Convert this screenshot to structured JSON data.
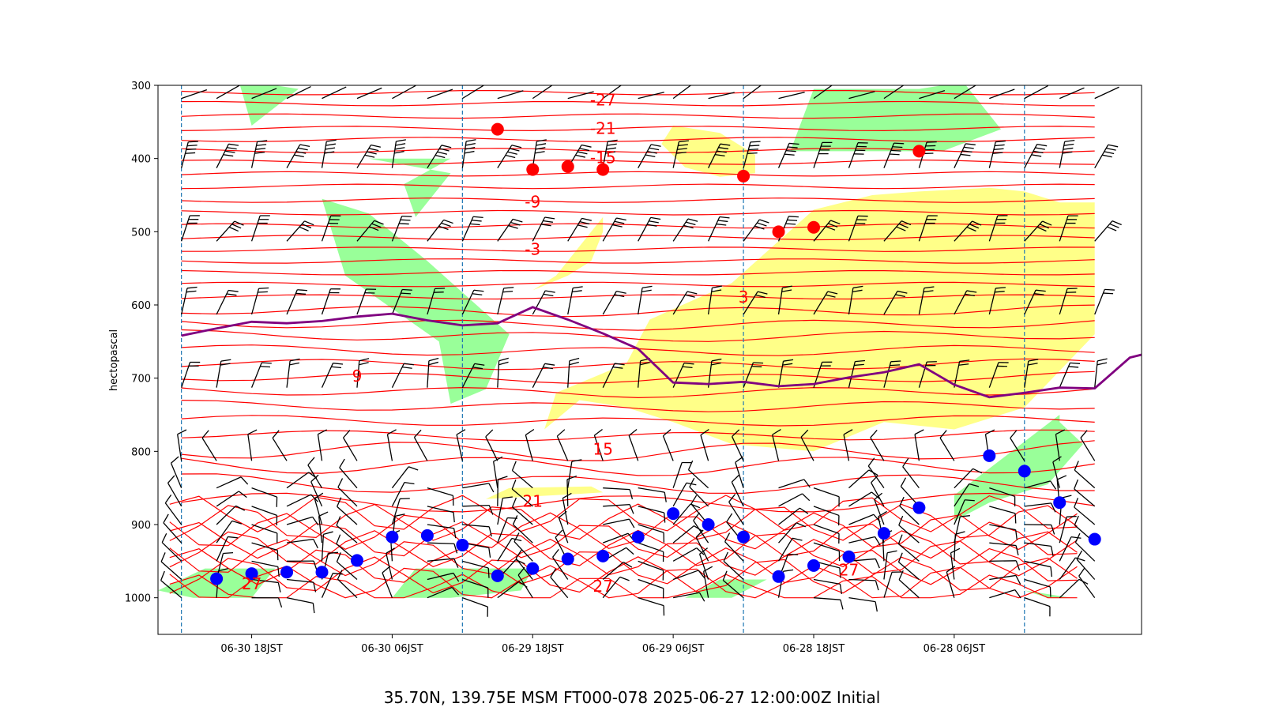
{
  "chart_data": {
    "type": "line",
    "title": "35.70N, 139.75E MSM FT000-078 2025-06-27 12:00:00Z Initial",
    "ylabel": "hectopascal",
    "xlabel": "",
    "x_axis_inverted": true,
    "y_axis_inverted": true,
    "xlim_hours": [
      -4,
      80
    ],
    "ylim": [
      300,
      1050
    ],
    "y_ticks": [
      300,
      400,
      500,
      600,
      700,
      800,
      900,
      1000
    ],
    "x_ticks": [
      {
        "label": "06-28 06JST",
        "hour": 12
      },
      {
        "label": "06-28 18JST",
        "hour": 24
      },
      {
        "label": "06-29 06JST",
        "hour": 36
      },
      {
        "label": "06-29 18JST",
        "hour": 48
      },
      {
        "label": "06-30 06JST",
        "hour": 60
      },
      {
        "label": "06-30 18JST",
        "hour": 72
      }
    ],
    "day_boundaries_hours": [
      6,
      30,
      54,
      78
    ],
    "colors": {
      "temperature_contour": "#ff0000",
      "freezing_level": "#800080",
      "moist_shading": "#ffff88",
      "saturated_shading": "#99ff99",
      "lcl_marker": "#0000ff",
      "high_marker": "#ff0000",
      "day_line": "#1f77b4",
      "barb": "#000000"
    },
    "freezing_level_line": {
      "hours": [
        -9,
        -6,
        -3,
        0,
        3,
        6,
        9,
        12,
        15,
        18,
        21,
        24,
        27,
        30,
        33,
        36,
        39,
        42,
        45,
        48,
        51,
        54,
        57,
        60,
        63,
        66,
        69,
        72,
        75,
        78
      ],
      "hpa": [
        645,
        660,
        672,
        714,
        713,
        720,
        726,
        709,
        681,
        692,
        699,
        708,
        711,
        705,
        708,
        706,
        660,
        639,
        620,
        603,
        625,
        628,
        621,
        612,
        616,
        622,
        625,
        623,
        632,
        642
      ]
    },
    "temperature_levels_labeled": [
      -27,
      -21,
      -15,
      -9,
      -3,
      3,
      9,
      15,
      21,
      27
    ],
    "temperature_labels": [
      {
        "text": "-27",
        "hour": 42,
        "hpa": 320
      },
      {
        "text": "-21",
        "hour": 42,
        "hpa": 359
      },
      {
        "text": "-15",
        "hour": 42,
        "hpa": 399
      },
      {
        "text": "-9",
        "hour": 48,
        "hpa": 459
      },
      {
        "text": "-3",
        "hour": 48,
        "hpa": 524
      },
      {
        "text": "3",
        "hour": 30,
        "hpa": 589
      },
      {
        "text": "9",
        "hour": 63,
        "hpa": 697
      },
      {
        "text": "15",
        "hour": 42,
        "hpa": 797
      },
      {
        "text": "21",
        "hour": 48,
        "hpa": 868
      },
      {
        "text": "27",
        "hour": 21,
        "hpa": 962
      },
      {
        "text": "27",
        "hour": 42,
        "hpa": 984
      },
      {
        "text": "27",
        "hour": 72,
        "hpa": 981
      }
    ],
    "series": [
      {
        "type": "scatter",
        "points": [
          {
            "hour": 0,
            "hpa": 920
          },
          {
            "hour": 3,
            "hpa": 870
          },
          {
            "hour": 6,
            "hpa": 827
          },
          {
            "hour": 9,
            "hpa": 806
          },
          {
            "hour": 15,
            "hpa": 877
          },
          {
            "hour": 18,
            "hpa": 912
          },
          {
            "hour": 21,
            "hpa": 944
          },
          {
            "hour": 24,
            "hpa": 956
          },
          {
            "hour": 27,
            "hpa": 971
          },
          {
            "hour": 30,
            "hpa": 917
          },
          {
            "hour": 33,
            "hpa": 900
          },
          {
            "hour": 36,
            "hpa": 885
          },
          {
            "hour": 39,
            "hpa": 917
          },
          {
            "hour": 42,
            "hpa": 943
          },
          {
            "hour": 45,
            "hpa": 947
          },
          {
            "hour": 48,
            "hpa": 960
          },
          {
            "hour": 51,
            "hpa": 970
          },
          {
            "hour": 54,
            "hpa": 928
          },
          {
            "hour": 57,
            "hpa": 915
          },
          {
            "hour": 60,
            "hpa": 917
          },
          {
            "hour": 63,
            "hpa": 949
          },
          {
            "hour": 66,
            "hpa": 965
          },
          {
            "hour": 69,
            "hpa": 965
          },
          {
            "hour": 72,
            "hpa": 967
          },
          {
            "hour": 75,
            "hpa": 974
          }
        ]
      },
      {
        "type": "scatter",
        "points": [
          {
            "hour": 15,
            "hpa": 390
          },
          {
            "hour": 24,
            "hpa": 494
          },
          {
            "hour": 27,
            "hpa": 500
          },
          {
            "hour": 30,
            "hpa": 424
          },
          {
            "hour": 42,
            "hpa": 415
          },
          {
            "hour": 45,
            "hpa": 411
          },
          {
            "hour": 48,
            "hpa": 415
          },
          {
            "hour": 51,
            "hpa": 360
          }
        ]
      }
    ],
    "moist_regions_yellow": [
      {
        "hours": [
          40,
          38,
          31,
          24,
          19,
          15,
          9,
          6,
          3,
          0,
          0,
          6,
          12,
          18,
          24,
          31,
          36,
          40,
          44,
          47,
          46,
          40
        ],
        "hpa": [
          680,
          620,
          570,
          470,
          450,
          445,
          440,
          445,
          460,
          460,
          640,
          740,
          770,
          760,
          800,
          790,
          760,
          740,
          730,
          770,
          720,
          680
        ]
      },
      {
        "hours": [
          48,
          45,
          43,
          42,
          42,
          43,
          46,
          48
        ],
        "hpa": [
          580,
          560,
          540,
          500,
          480,
          500,
          560,
          580
        ]
      },
      {
        "hours": [
          32,
          29,
          29,
          32,
          36,
          37,
          35,
          32
        ],
        "hpa": [
          425,
          420,
          395,
          365,
          355,
          380,
          412,
          425
        ]
      },
      {
        "hours": [
          52,
          50,
          43,
          42,
          44,
          52
        ],
        "hpa": [
          865,
          850,
          848,
          856,
          858,
          865
        ]
      }
    ],
    "saturated_regions_green": [
      {
        "hours": [
          66,
          62,
          57,
          50,
          52,
          55,
          56,
          64,
          66
        ],
        "hpa": [
          455,
          475,
          540,
          640,
          715,
          735,
          650,
          560,
          455
        ]
      },
      {
        "hours": [
          68,
          70,
          73,
          72,
          68
        ],
        "hpa": [
          305,
          300,
          300,
          355,
          305
        ]
      },
      {
        "hours": [
          15,
          13,
          11,
          8,
          13,
          22,
          26,
          24,
          15
        ],
        "hpa": [
          305,
          300,
          300,
          360,
          390,
          390,
          390,
          305,
          305
        ]
      },
      {
        "hours": [
          12,
          12,
          9,
          4,
          1,
          3,
          3,
          12
        ],
        "hpa": [
          860,
          895,
          870,
          845,
          790,
          760,
          750,
          860
        ]
      },
      {
        "hours": [
          4,
          2,
          6,
          4
        ],
        "hpa": [
          1000,
          1000,
          990,
          1000
        ]
      },
      {
        "hours": [
          62,
          55,
          58,
          59,
          55,
          60,
          62
        ],
        "hpa": [
          400,
          420,
          480,
          435,
          400,
          400,
          400
        ]
      },
      {
        "hours": [
          72,
          70,
          76,
          80,
          77,
          74,
          72
        ],
        "hpa": [
          1000,
          960,
          960,
          990,
          1000,
          1000,
          1000
        ]
      },
      {
        "hours": [
          60,
          58,
          48,
          49,
          55,
          60
        ],
        "hpa": [
          1000,
          960,
          960,
          990,
          1000,
          1000
        ]
      },
      {
        "hours": [
          28,
          32,
          35,
          31,
          28
        ],
        "hpa": [
          975,
          975,
          1000,
          1000,
          975
        ]
      }
    ]
  }
}
